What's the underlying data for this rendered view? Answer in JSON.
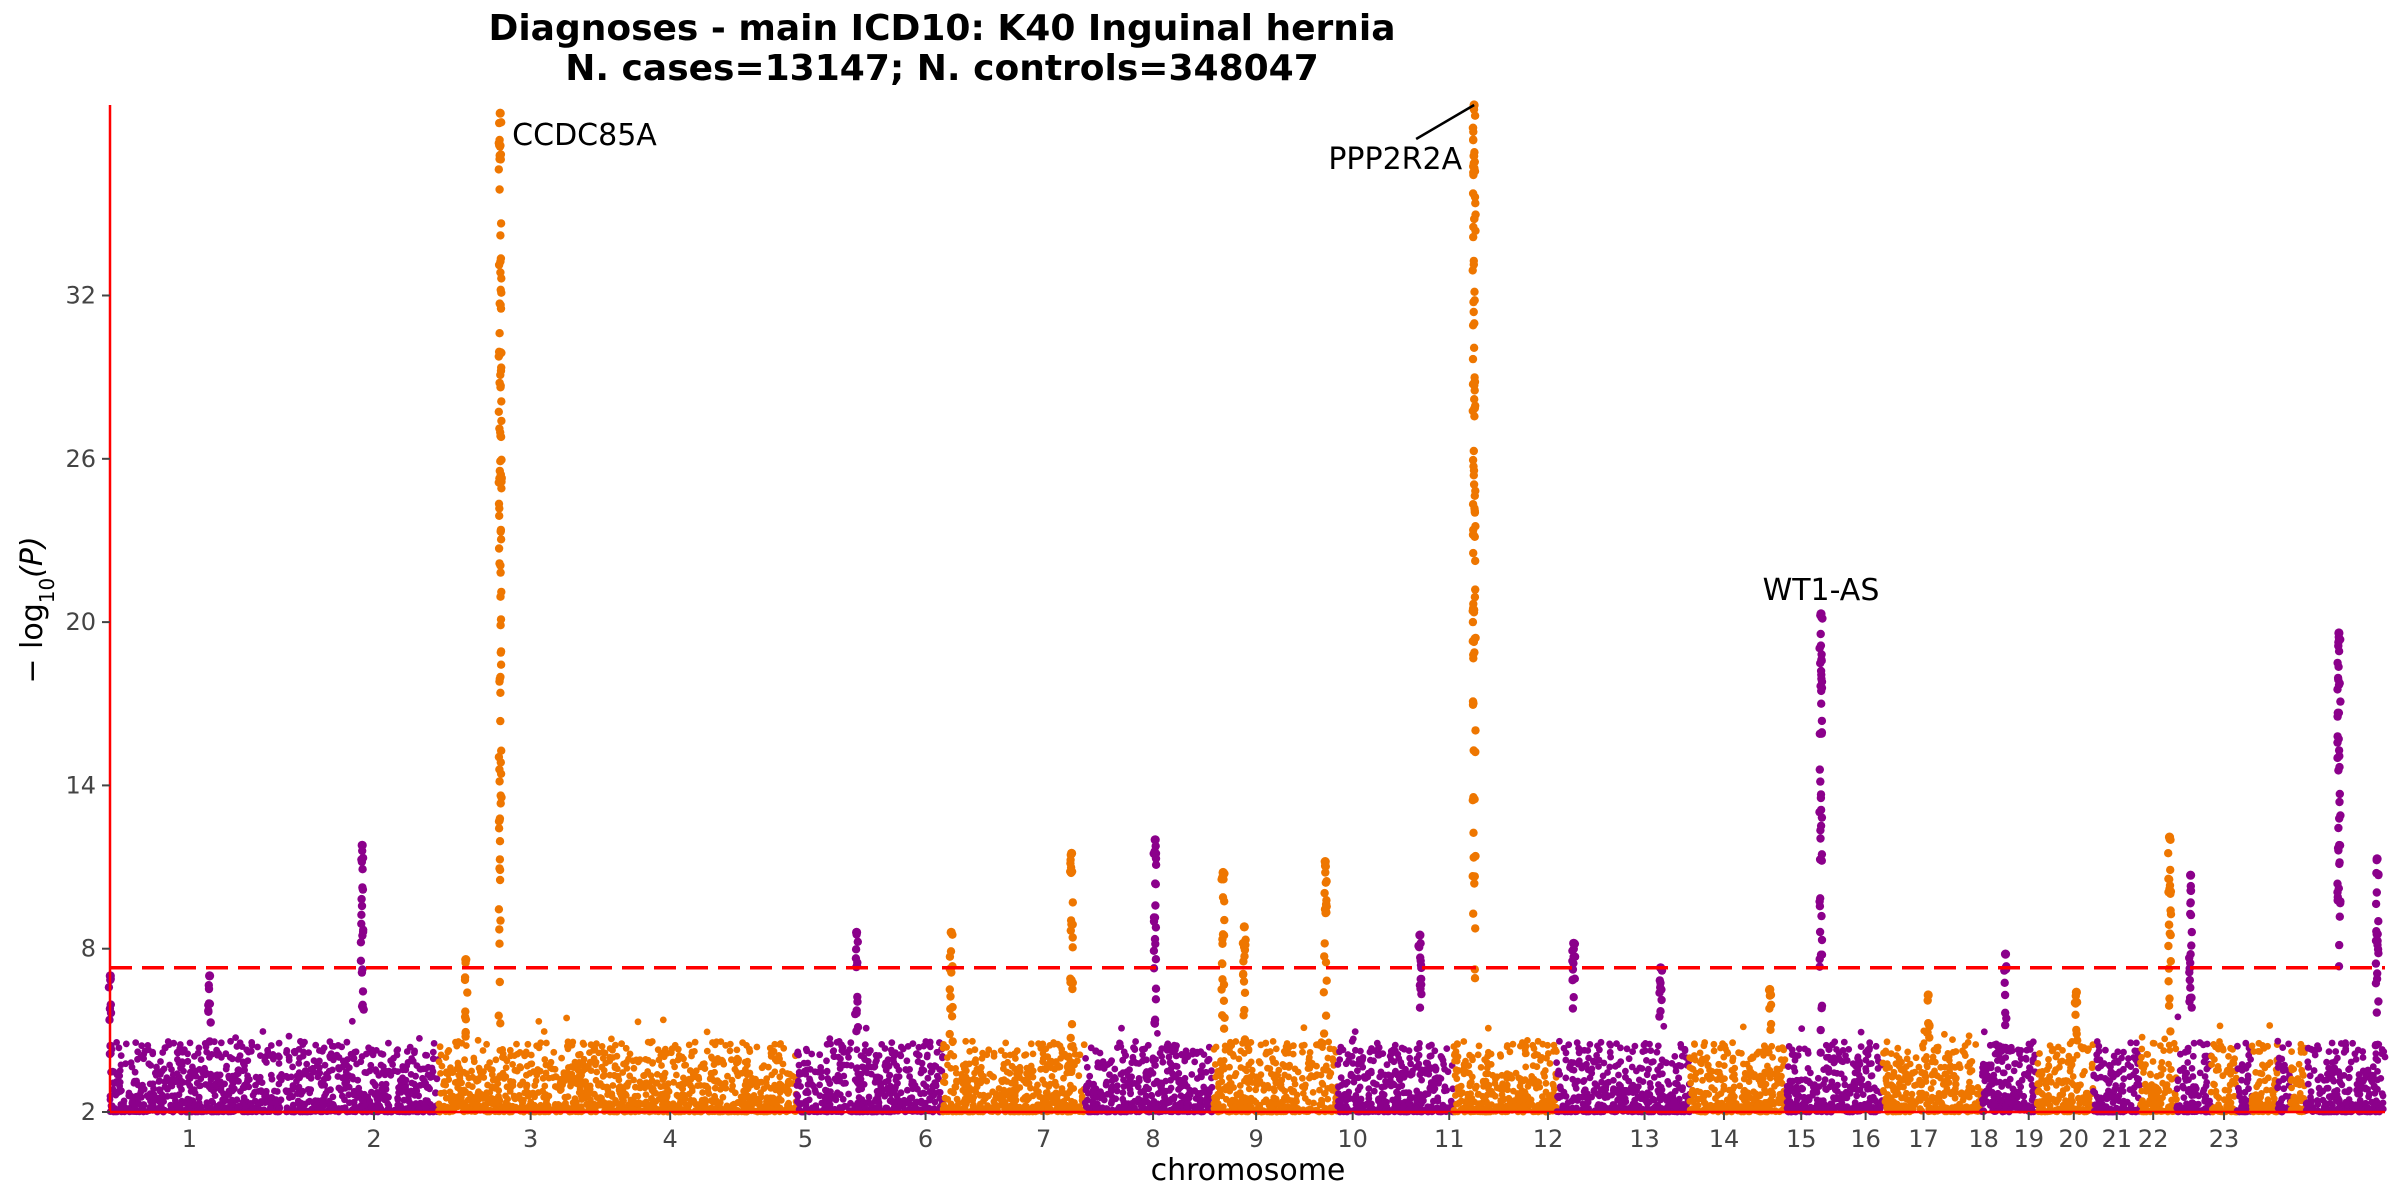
{
  "chart_data": {
    "type": "scatter",
    "subtype": "manhattan",
    "title": "Diagnoses - main ICD10: K40 Inguinal hernia",
    "subtitle": "N. cases=13147; N. controls=348047",
    "xlabel": "chromosome",
    "ylabel": "-log10(P)",
    "ylim": [
      2,
      39
    ],
    "yticks": [
      2,
      8,
      14,
      20,
      26,
      32
    ],
    "significance_threshold": 7.3,
    "colors": {
      "odd": "#8b008b",
      "even": "#ee7600",
      "threshold": "#ff0000",
      "axis": "#ff0000"
    },
    "chromosomes": [
      {
        "label": "1",
        "start": 0.0,
        "end": 0.08,
        "color": "purple",
        "peaks": [
          {
            "pos": 0.002,
            "y": 7.0
          },
          {
            "pos": 0.58,
            "y": 7.0
          }
        ]
      },
      {
        "label": "1",
        "start": 0.082,
        "end": 0.153,
        "color": "purple",
        "peaks": [
          {
            "pos": 0.5,
            "y": 11.8
          }
        ]
      },
      {
        "label": "2",
        "start": 0.153,
        "end": 0.233,
        "color": "orange",
        "peaks": [
          {
            "pos": 0.16,
            "y": 7.6
          },
          {
            "pos": 0.36,
            "y": 38.7
          }
        ]
      },
      {
        "label": "2",
        "start": 0.233,
        "end": 0.32,
        "color": "orange",
        "peaks": []
      },
      {
        "label": "3",
        "start": 0.32,
        "end": 0.388,
        "color": "purple",
        "peaks": [
          {
            "pos": 0.41,
            "y": 8.6
          }
        ]
      },
      {
        "label": "4",
        "start": 0.388,
        "end": 0.454,
        "color": "orange",
        "peaks": [
          {
            "pos": 0.06,
            "y": 8.6
          },
          {
            "pos": 0.91,
            "y": 11.5
          }
        ]
      },
      {
        "label": "5",
        "start": 0.454,
        "end": 0.514,
        "color": "purple",
        "peaks": [
          {
            "pos": 0.55,
            "y": 12.0
          }
        ]
      },
      {
        "label": "6",
        "start": 0.514,
        "end": 0.572,
        "color": "orange",
        "peaks": [
          {
            "pos": 0.08,
            "y": 10.8
          },
          {
            "pos": 0.25,
            "y": 8.8
          },
          {
            "pos": 0.9,
            "y": 11.2
          }
        ]
      },
      {
        "label": "7",
        "start": 0.572,
        "end": 0.626,
        "color": "purple",
        "peaks": [
          {
            "pos": 0.71,
            "y": 8.5
          }
        ]
      },
      {
        "label": "8",
        "start": 0.626,
        "end": 0.674,
        "color": "orange",
        "peaks": [
          {
            "pos": 0.2,
            "y": 39.0
          }
        ]
      },
      {
        "label": "9",
        "start": 0.674,
        "end": 0.706,
        "color": "purple",
        "peaks": [
          {
            "pos": 0.25,
            "y": 8.2
          }
        ]
      },
      {
        "label": "9",
        "start": 0.706,
        "end": 0.736,
        "color": "purple",
        "peaks": [
          {
            "pos": 0.55,
            "y": 7.3
          }
        ]
      },
      {
        "label": "10",
        "start": 0.736,
        "end": 0.781,
        "color": "orange",
        "peaks": [
          {
            "pos": 0.83,
            "y": 6.5
          }
        ]
      },
      {
        "label": "11",
        "start": 0.781,
        "end": 0.826,
        "color": "purple",
        "peaks": [
          {
            "pos": 0.36,
            "y": 20.3
          }
        ]
      },
      {
        "label": "12",
        "start": 0.826,
        "end": 0.872,
        "color": "orange",
        "peaks": [
          {
            "pos": 0.46,
            "y": 6.3
          }
        ]
      },
      {
        "label": "13",
        "start": 0.872,
        "end": 0.898,
        "color": "purple",
        "peaks": [
          {
            "pos": 0.43,
            "y": 7.8
          }
        ]
      },
      {
        "label": "14",
        "start": 0.898,
        "end": 0.924,
        "color": "orange",
        "peaks": [
          {
            "pos": 0.7,
            "y": 6.4
          }
        ]
      },
      {
        "label": "15",
        "start": 0.924,
        "end": 0.946,
        "color": "purple",
        "peaks": []
      },
      {
        "label": "16",
        "start": 0.946,
        "end": 0.963,
        "color": "orange",
        "peaks": [
          {
            "pos": 0.8,
            "y": 12.1
          }
        ]
      },
      {
        "label": "17",
        "start": 0.963,
        "end": 0.979,
        "color": "purple",
        "peaks": [
          {
            "pos": 0.4,
            "y": 10.7
          }
        ]
      },
      {
        "label": "18",
        "start": 0.979,
        "end": 0.991,
        "color": "orange",
        "peaks": []
      },
      {
        "label": "19",
        "start": 0.991,
        "end": 0.998,
        "color": "purple",
        "peaks": []
      },
      {
        "label": "20",
        "start": 0.998,
        "end": 1.01,
        "color": "orange",
        "peaks": []
      },
      {
        "label": "21",
        "start": 1.01,
        "end": 1.016,
        "color": "purple",
        "peaks": []
      },
      {
        "label": "22",
        "start": 1.016,
        "end": 1.023,
        "color": "orange",
        "peaks": []
      },
      {
        "label": "23",
        "start": 1.023,
        "end": 1.06,
        "color": "purple",
        "peaks": [
          {
            "pos": 0.42,
            "y": 19.6
          },
          {
            "pos": 0.9,
            "y": 11.3
          }
        ]
      }
    ],
    "tick_labels": [
      {
        "label": "1",
        "x": 0.037
      },
      {
        "label": "2",
        "x": 0.123
      },
      {
        "label": "3",
        "x": 0.196
      },
      {
        "label": "4",
        "x": 0.261
      },
      {
        "label": "5",
        "x": 0.324
      },
      {
        "label": "6",
        "x": 0.38
      },
      {
        "label": "7",
        "x": 0.435
      },
      {
        "label": "8",
        "x": 0.486
      },
      {
        "label": "9",
        "x": 0.534
      },
      {
        "label": "10",
        "x": 0.579
      },
      {
        "label": "11",
        "x": 0.624
      },
      {
        "label": "12",
        "x": 0.67
      },
      {
        "label": "13",
        "x": 0.715
      },
      {
        "label": "14",
        "x": 0.752
      },
      {
        "label": "15",
        "x": 0.788
      },
      {
        "label": "16",
        "x": 0.818
      },
      {
        "label": "17",
        "x": 0.845
      },
      {
        "label": "18",
        "x": 0.873
      },
      {
        "label": "19",
        "x": 0.894
      },
      {
        "label": "20",
        "x": 0.915
      },
      {
        "label": "21",
        "x": 0.935
      },
      {
        "label": "22",
        "x": 0.952
      },
      {
        "label": "23",
        "x": 0.985
      }
    ],
    "annotations": [
      {
        "label": "CCDC85A",
        "chrom_index": 2,
        "y": 38.7
      },
      {
        "label": "PPP2R2A",
        "chrom_index": 9,
        "y": 39.0
      },
      {
        "label": "WT1-AS",
        "chrom_index": 13,
        "y": 20.3
      }
    ]
  }
}
